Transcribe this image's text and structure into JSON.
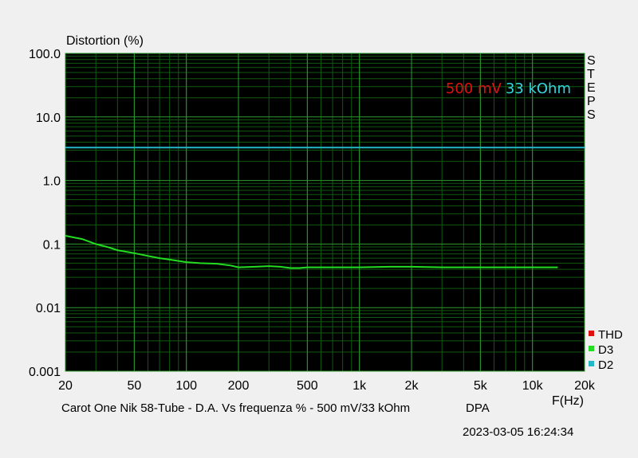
{
  "chart_data": {
    "type": "line",
    "title": "Distortion (%)",
    "ylabel": "Distortion (%)",
    "xlabel": "F(Hz)",
    "x_scale": "log",
    "y_scale": "log",
    "xlim": [
      20,
      20000
    ],
    "ylim": [
      0.001,
      100
    ],
    "x_ticks": [
      20,
      50,
      100,
      200,
      500,
      1000,
      2000,
      5000,
      10000,
      20000
    ],
    "x_tick_labels": [
      "20",
      "50",
      "100",
      "200",
      "500",
      "1k",
      "2k",
      "5k",
      "10k",
      "20k"
    ],
    "y_ticks": [
      0.001,
      0.01,
      0.1,
      1,
      10,
      100
    ],
    "y_tick_labels": [
      "0.001",
      "0.01",
      "0.1",
      "1.0",
      "10.0",
      "100.0"
    ],
    "grid": true,
    "background": "#000000",
    "steps_label": "STEPS",
    "annotation": {
      "level_text": "500 mV",
      "level_color": "#e01010",
      "load_text": "33 kOhm",
      "load_color": "#33d6dc"
    },
    "legend": {
      "placement": "bottom-right",
      "entries": [
        {
          "name": "THD",
          "color": "#e01010"
        },
        {
          "name": "D3",
          "color": "#22dd22"
        },
        {
          "name": "D2",
          "color": "#22b8c8"
        }
      ]
    },
    "series": [
      {
        "name": "D2",
        "color": "#22b8c8",
        "x": [
          20,
          20000
        ],
        "y": [
          3.3,
          3.3
        ]
      },
      {
        "name": "D3",
        "color": "#22dd22",
        "x": [
          20,
          25,
          30,
          35,
          40,
          50,
          60,
          70,
          80,
          100,
          120,
          150,
          180,
          200,
          250,
          300,
          350,
          400,
          450,
          500,
          700,
          1000,
          1500,
          2000,
          3000,
          5000,
          7000,
          10000,
          14000
        ],
        "y": [
          0.135,
          0.12,
          0.1,
          0.09,
          0.08,
          0.072,
          0.065,
          0.06,
          0.057,
          0.052,
          0.05,
          0.049,
          0.046,
          0.043,
          0.044,
          0.045,
          0.044,
          0.042,
          0.042,
          0.043,
          0.043,
          0.043,
          0.044,
          0.044,
          0.043,
          0.043,
          0.043,
          0.043,
          0.043
        ]
      }
    ]
  },
  "caption": "Carot One Nik 58-Tube - D.A. Vs frequenza % - 500 mV/33 kOhm",
  "dpa": "DPA",
  "timestamp": "2023-03-05 16:24:34"
}
